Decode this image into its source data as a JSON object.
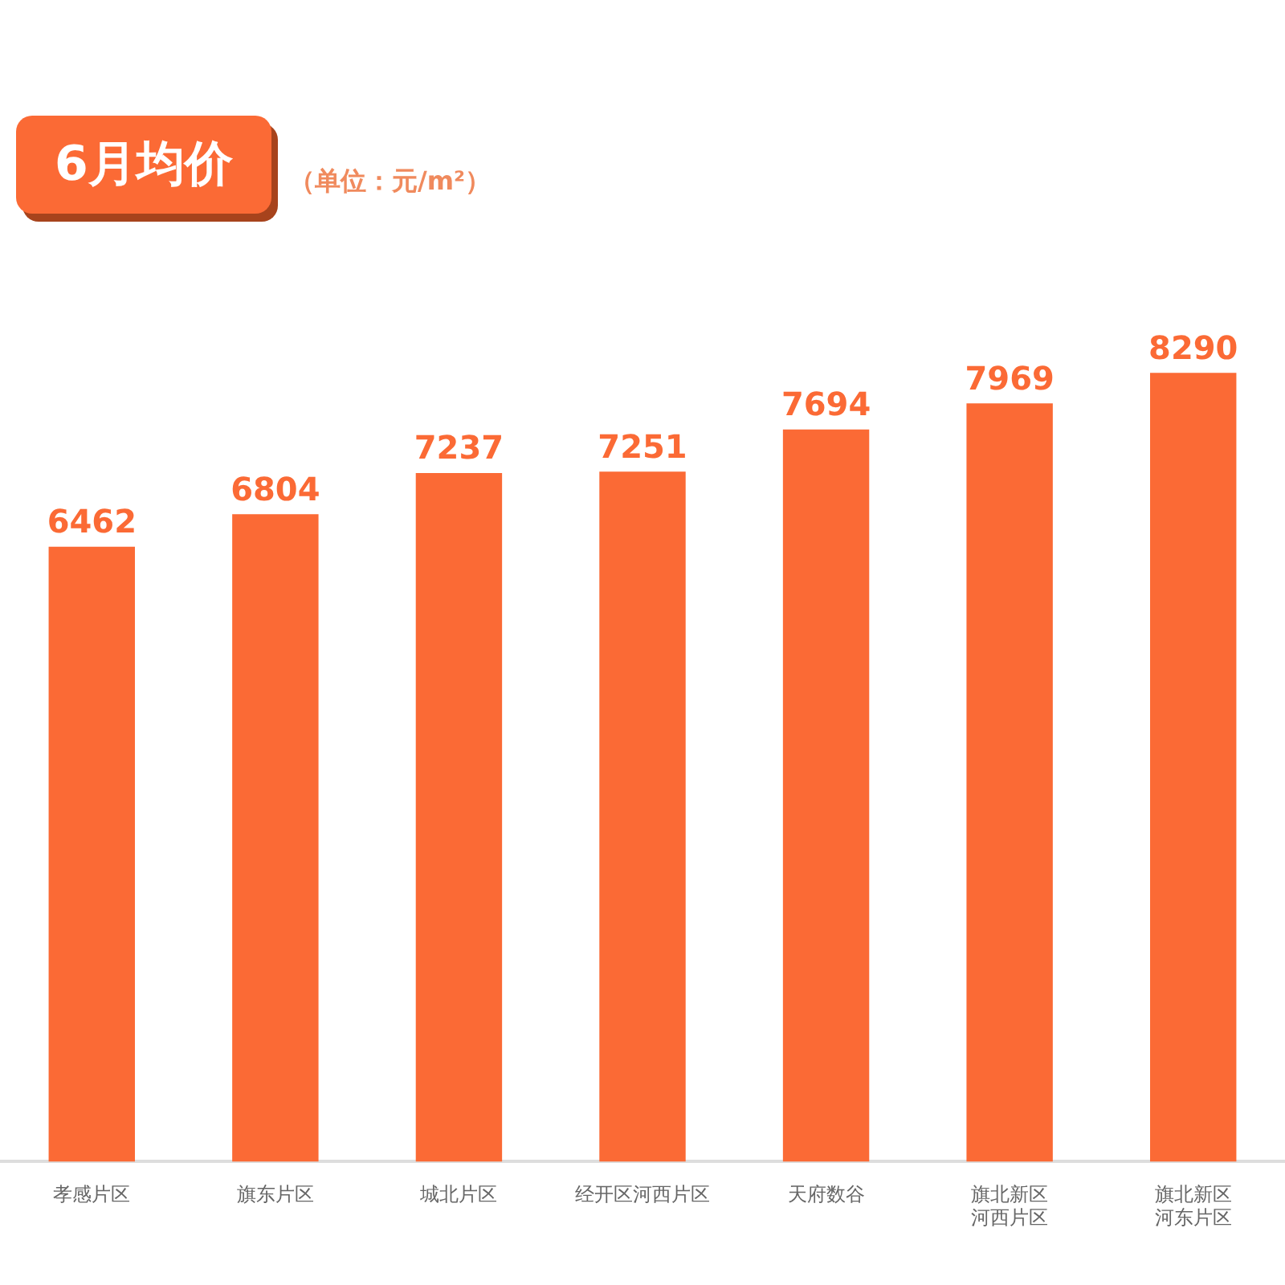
{
  "chart_data": {
    "type": "bar",
    "title": "6月均价",
    "subtitle": "（单位：元/m²）",
    "categories": [
      "孝感片区",
      "旗东片区",
      "城北片区",
      "经开区河西片区",
      "天府数谷",
      "旗北新区河西片区",
      "旗北新区河东片区"
    ],
    "values": [
      6462,
      6804,
      7237,
      7251,
      7694,
      7969,
      8290
    ],
    "color": "#fb6a35",
    "data_labels": true,
    "grid": false,
    "legend": false
  }
}
